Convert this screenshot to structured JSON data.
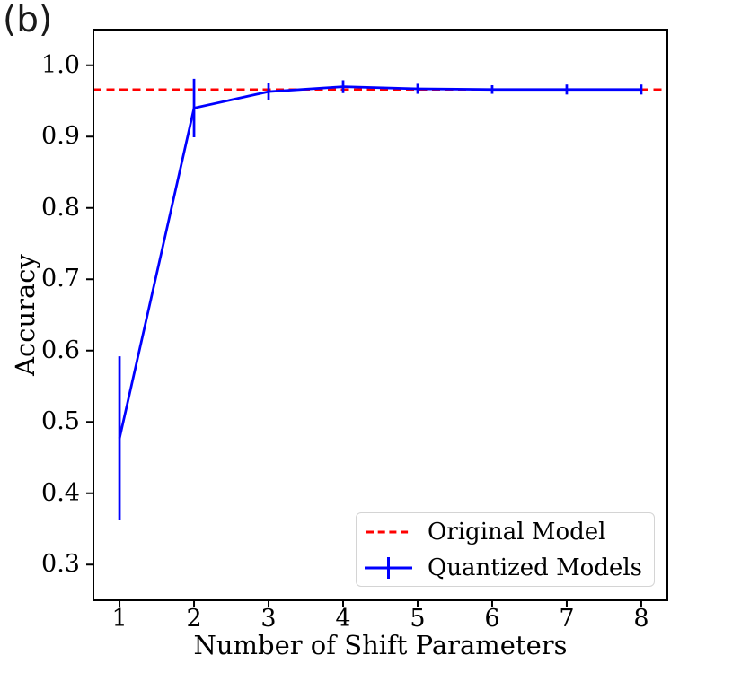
{
  "panel_label": "(b)",
  "colors": {
    "series_line": "#0000ff",
    "reference_line": "#ff0000",
    "axis": "#000000",
    "legend_border": "#d4d4d4"
  },
  "chart_data": {
    "type": "line",
    "title": "",
    "xlabel": "Number of Shift Parameters",
    "ylabel": "Accuracy",
    "xlim": [
      0.65,
      8.35
    ],
    "ylim": [
      0.25,
      1.05
    ],
    "xticks": [
      1,
      2,
      3,
      4,
      5,
      6,
      7,
      8
    ],
    "yticks": [
      0.3,
      0.4,
      0.5,
      0.6,
      0.7,
      0.8,
      0.9,
      1.0
    ],
    "grid": false,
    "legend_position": "lower right",
    "reference_line": {
      "name": "Original Model",
      "value": 0.966,
      "style": "dashed",
      "color": "#ff0000"
    },
    "series": [
      {
        "name": "Quantized Models",
        "color": "#0000ff",
        "marker": "errorbar",
        "x": [
          1,
          2,
          3,
          4,
          5,
          6,
          7,
          8
        ],
        "y": [
          0.477,
          0.94,
          0.963,
          0.97,
          0.967,
          0.966,
          0.966,
          0.966
        ],
        "yerr": [
          0.115,
          0.041,
          0.012,
          0.009,
          0.007,
          0.006,
          0.007,
          0.007
        ]
      }
    ]
  },
  "legend": {
    "items": [
      {
        "label": "Original Model"
      },
      {
        "label": "Quantized Models"
      }
    ]
  }
}
